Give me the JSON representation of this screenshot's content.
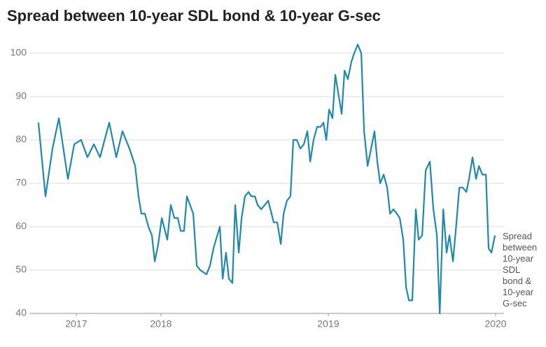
{
  "chart_data": {
    "type": "line",
    "title": "Spread between 10-year SDL bond & 10-year G-sec",
    "x": [
      2017.268,
      2017.31,
      2017.352,
      2017.39,
      2017.444,
      2017.482,
      2017.523,
      2017.561,
      2017.599,
      2017.636,
      2017.691,
      2017.733,
      2017.77,
      2017.812,
      2017.846,
      2017.866,
      2017.883,
      2017.904,
      2017.925,
      2017.946,
      2017.963,
      2017.984,
      2018.005,
      2018.038,
      2018.059,
      2018.08,
      2018.101,
      2018.118,
      2018.138,
      2018.155,
      2018.193,
      2018.214,
      2018.235,
      2018.272,
      2018.293,
      2018.314,
      2018.352,
      2018.369,
      2018.389,
      2018.406,
      2018.427,
      2018.444,
      2018.465,
      2018.482,
      2018.502,
      2018.523,
      2018.54,
      2018.561,
      2018.578,
      2018.599,
      2018.641,
      2018.674,
      2018.695,
      2018.716,
      2018.733,
      2018.753,
      2018.774,
      2018.791,
      2018.812,
      2018.833,
      2018.854,
      2018.875,
      2018.892,
      2018.912,
      2018.933,
      2018.954,
      2018.971,
      2018.988,
      2019.005,
      2019.025,
      2019.042,
      2019.063,
      2019.08,
      2019.097,
      2019.117,
      2019.138,
      2019.155,
      2019.176,
      2019.197,
      2019.214,
      2019.235,
      2019.256,
      2019.276,
      2019.293,
      2019.31,
      2019.331,
      2019.352,
      2019.369,
      2019.389,
      2019.41,
      2019.427,
      2019.448,
      2019.465,
      2019.482,
      2019.502,
      2019.523,
      2019.54,
      2019.561,
      2019.582,
      2019.607,
      2019.628,
      2019.649,
      2019.666,
      2019.687,
      2019.707,
      2019.724,
      2019.745,
      2019.766,
      2019.783,
      2019.804,
      2019.825,
      2019.841,
      2019.862,
      2019.883,
      2019.9,
      2019.921,
      2019.942,
      2019.958,
      2019.975,
      2019.996
    ],
    "series": [
      {
        "name": "Spread between 10-year SDL bond & 10-year G-sec",
        "color": "#1f89aa",
        "values": [
          84,
          67,
          78,
          85,
          71,
          79,
          80,
          76,
          79,
          76,
          84,
          76,
          82,
          78,
          74,
          67,
          63,
          63,
          60,
          58,
          52,
          56,
          62,
          57,
          65,
          62,
          62,
          59,
          59,
          67,
          63,
          51,
          50,
          49,
          51,
          55,
          60,
          48,
          54,
          48,
          47,
          65,
          54,
          62,
          67,
          68,
          67,
          67,
          65,
          64,
          66,
          61,
          61,
          56,
          63,
          66,
          67,
          80,
          80,
          78,
          79,
          82,
          75,
          80,
          83,
          83,
          84,
          80,
          87,
          85,
          95,
          90,
          86,
          96,
          94,
          98,
          100,
          102,
          100,
          82,
          74,
          78,
          82,
          75,
          70,
          72,
          69,
          63,
          64,
          63,
          62,
          57,
          46,
          43,
          43,
          64,
          57,
          58,
          73,
          75,
          64,
          58,
          40,
          64,
          54,
          58,
          52,
          61,
          69,
          69,
          68,
          71,
          76,
          71,
          74,
          72,
          72,
          55,
          54,
          58
        ]
      }
    ],
    "xlim": [
      2017.214,
      2020.05
    ],
    "xticks": [
      {
        "value": 2017.494,
        "label": "2017"
      },
      2018,
      2019,
      2020
    ],
    "ylim": [
      40,
      100
    ],
    "yticks": [
      40,
      50,
      60,
      70,
      80,
      90,
      100
    ],
    "grid": true
  }
}
